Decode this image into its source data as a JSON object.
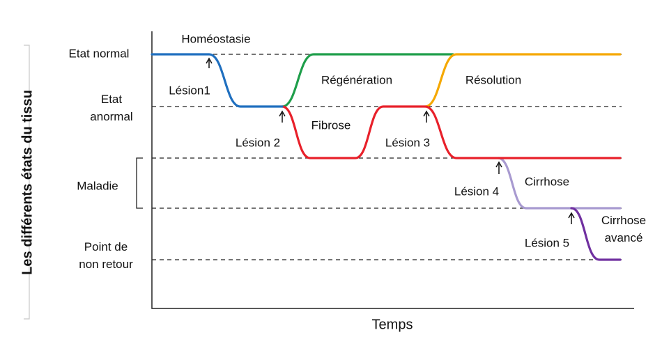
{
  "axes": {
    "y_label": "Les différents états du tissu",
    "x_label": "Temps"
  },
  "states": [
    {
      "lines": [
        "Etat normal"
      ]
    },
    {
      "lines": [
        "Etat",
        "anormal"
      ]
    },
    {
      "lines": [
        "Maladie"
      ]
    },
    {
      "lines": [
        "Point de",
        "non retour"
      ]
    }
  ],
  "curves": [
    {
      "lines": [
        "Homéostasie"
      ],
      "color": "#1f6fbf"
    },
    {
      "lines": [
        "Régénération"
      ],
      "color": "#1e9e4a"
    },
    {
      "lines": [
        "Résolution"
      ],
      "color": "#f5a800"
    },
    {
      "lines": [
        "Fibrose"
      ],
      "color": "#e8202a"
    },
    {
      "lines": [
        "Cirrhose"
      ],
      "color": "#a89ad0"
    },
    {
      "lines": [
        "Cirrhose",
        "avancé"
      ],
      "color": "#7030a0"
    }
  ],
  "lesions": [
    "Lésion1",
    "Lésion 2",
    "Lésion 3",
    "Lésion 4",
    "Lésion 5"
  ]
}
